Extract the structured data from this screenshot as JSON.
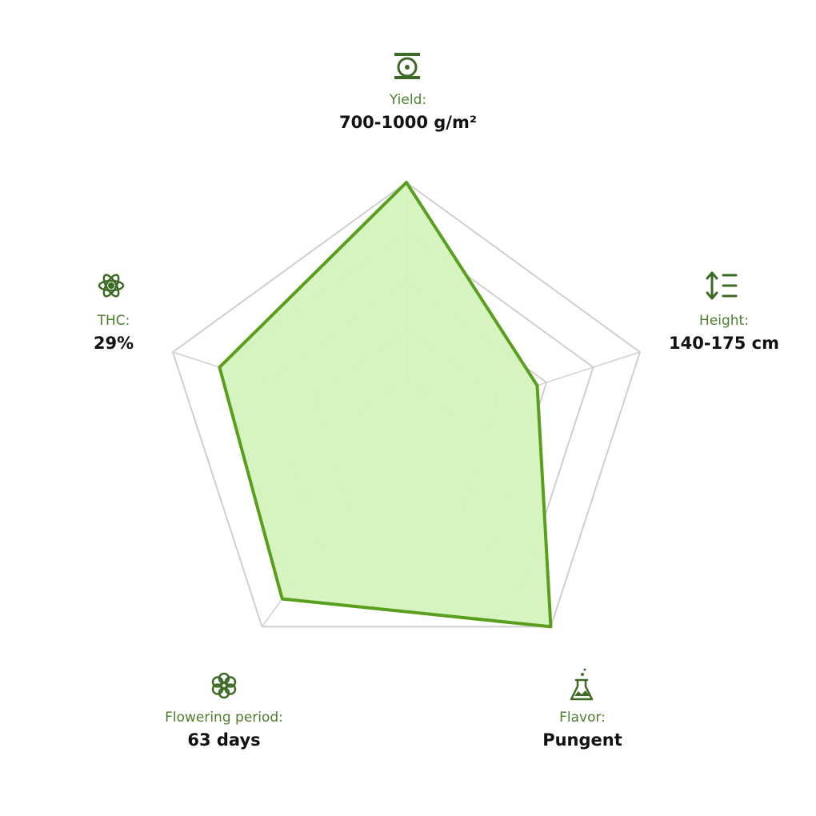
{
  "chart_data": {
    "type": "radar",
    "categories": [
      "Yield:",
      "Height:",
      "Flavor:",
      "Flowering period:",
      "THC:"
    ],
    "details": [
      "700-1000 g/m²",
      "140-175 cm",
      "Pungent",
      "63 days",
      "29%"
    ],
    "values": [
      5,
      2.8,
      5,
      4.3,
      4
    ],
    "rlim": [
      0,
      5
    ],
    "rticks": [
      1,
      2,
      3,
      4,
      5
    ],
    "color": "#5a9e1e",
    "fill": "#d4f3bd",
    "grid_color": "#cfcfcf"
  }
}
